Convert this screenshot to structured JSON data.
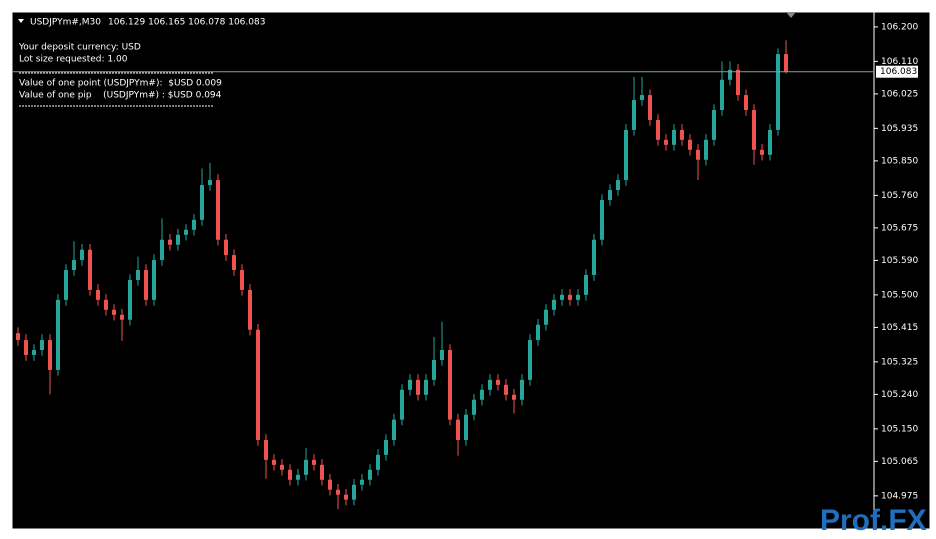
{
  "chart_data": {
    "type": "candlestick",
    "symbol": "USDJPYm#,M30",
    "header_prices": "106.129 106.165 106.078 106.083",
    "info_lines": [
      "Your deposit currency: USD",
      "Lot size requested: 1.00",
      "Value of one point (USDJPYm#):  $USD 0.009",
      "Value of one pip    (USDJPYm#) : $USD 0.094"
    ],
    "watermark": "Prof.FX",
    "last_price": 106.083,
    "up_color": "#26a69a",
    "down_color": "#ef5350",
    "ylim": [
      104.891,
      106.239
    ],
    "yticks": [
      {
        "value": 106.2,
        "label": "106.200"
      },
      {
        "value": 106.11,
        "label": "106.110"
      },
      {
        "value": 106.025,
        "label": "106.025"
      },
      {
        "value": 105.935,
        "label": "105.935"
      },
      {
        "value": 105.85,
        "label": "105.850"
      },
      {
        "value": 105.76,
        "label": "105.760"
      },
      {
        "value": 105.675,
        "label": "105.675"
      },
      {
        "value": 105.59,
        "label": "105.590"
      },
      {
        "value": 105.5,
        "label": "105.500"
      },
      {
        "value": 105.415,
        "label": "105.415"
      },
      {
        "value": 105.325,
        "label": "105.325"
      },
      {
        "value": 105.24,
        "label": "105.240"
      },
      {
        "value": 105.15,
        "label": "105.150"
      },
      {
        "value": 105.065,
        "label": "105.065"
      },
      {
        "value": 104.975,
        "label": "104.975"
      }
    ],
    "open": [
      105.4,
      105.382,
      105.343,
      105.356,
      105.382,
      105.304,
      105.487,
      105.565,
      105.591,
      105.618,
      105.513,
      105.487,
      105.461,
      105.448,
      105.435,
      105.539,
      105.565,
      105.487,
      105.591,
      105.644,
      105.631,
      105.657,
      105.67,
      105.696,
      105.787,
      105.8,
      105.644,
      105.604,
      105.565,
      105.513,
      105.409,
      105.121,
      105.069,
      105.056,
      105.043,
      105.017,
      105.03,
      105.069,
      105.056,
      105.017,
      104.991,
      104.978,
      104.965,
      105.004,
      105.017,
      105.043,
      105.082,
      105.121,
      105.174,
      105.252,
      105.278,
      105.239,
      105.278,
      105.33,
      105.356,
      105.174,
      105.121,
      105.187,
      105.226,
      105.252,
      105.278,
      105.265,
      105.239,
      105.226,
      105.278,
      105.382,
      105.422,
      105.461,
      105.487,
      105.5,
      105.487,
      105.5,
      105.552,
      105.644,
      105.748,
      105.774,
      105.8,
      105.931,
      106.009,
      106.022,
      105.957,
      105.905,
      105.892,
      105.931,
      105.905,
      105.879,
      105.853,
      105.905,
      105.983,
      106.062,
      106.088,
      106.022,
      105.983,
      105.879,
      105.866,
      105.931,
      106.129
    ],
    "high": [
      105.415,
      105.397,
      105.371,
      105.397,
      105.397,
      105.502,
      105.58,
      105.64,
      105.633,
      105.633,
      105.528,
      105.502,
      105.476,
      105.463,
      105.554,
      105.6,
      105.58,
      105.606,
      105.7,
      105.659,
      105.672,
      105.685,
      105.711,
      105.83,
      105.845,
      105.815,
      105.659,
      105.619,
      105.58,
      105.528,
      105.424,
      105.136,
      105.084,
      105.071,
      105.058,
      105.045,
      105.1,
      105.084,
      105.071,
      105.032,
      105.006,
      104.993,
      105.019,
      105.032,
      105.058,
      105.097,
      105.136,
      105.189,
      105.267,
      105.293,
      105.293,
      105.293,
      105.39,
      105.43,
      105.371,
      105.189,
      105.202,
      105.241,
      105.267,
      105.293,
      105.293,
      105.28,
      105.254,
      105.293,
      105.397,
      105.437,
      105.476,
      105.502,
      105.515,
      105.515,
      105.515,
      105.567,
      105.659,
      105.763,
      105.789,
      105.815,
      105.946,
      106.07,
      106.07,
      106.037,
      105.972,
      105.92,
      105.946,
      105.946,
      105.92,
      105.894,
      105.92,
      105.998,
      106.11,
      106.11,
      106.103,
      106.037,
      105.998,
      105.894,
      105.946,
      106.144,
      106.165
    ],
    "low": [
      105.367,
      105.328,
      105.328,
      105.341,
      105.24,
      105.289,
      105.472,
      105.55,
      105.576,
      105.498,
      105.472,
      105.446,
      105.433,
      105.38,
      105.42,
      105.524,
      105.472,
      105.472,
      105.576,
      105.616,
      105.616,
      105.642,
      105.655,
      105.681,
      105.772,
      105.629,
      105.589,
      105.55,
      105.498,
      105.394,
      105.106,
      105.02,
      105.041,
      105.028,
      105.002,
      105.002,
      105.015,
      105.041,
      105.002,
      104.976,
      104.94,
      104.95,
      104.95,
      104.989,
      105.002,
      105.028,
      105.067,
      105.106,
      105.159,
      105.237,
      105.224,
      105.224,
      105.263,
      105.315,
      105.159,
      105.08,
      105.106,
      105.172,
      105.211,
      105.237,
      105.25,
      105.224,
      105.19,
      105.211,
      105.263,
      105.367,
      105.407,
      105.446,
      105.472,
      105.472,
      105.472,
      105.485,
      105.537,
      105.629,
      105.733,
      105.759,
      105.785,
      105.916,
      105.994,
      105.942,
      105.89,
      105.877,
      105.877,
      105.89,
      105.864,
      105.8,
      105.838,
      105.89,
      105.968,
      106.047,
      106.007,
      105.968,
      105.84,
      105.851,
      105.851,
      105.916,
      106.078
    ],
    "close": [
      105.382,
      105.343,
      105.356,
      105.382,
      105.304,
      105.487,
      105.565,
      105.591,
      105.618,
      105.513,
      105.487,
      105.461,
      105.448,
      105.435,
      105.539,
      105.565,
      105.487,
      105.591,
      105.644,
      105.631,
      105.657,
      105.67,
      105.696,
      105.787,
      105.8,
      105.644,
      105.604,
      105.565,
      105.513,
      105.409,
      105.121,
      105.069,
      105.056,
      105.043,
      105.017,
      105.03,
      105.069,
      105.056,
      105.017,
      104.991,
      104.978,
      104.965,
      105.004,
      105.017,
      105.043,
      105.082,
      105.121,
      105.174,
      105.252,
      105.278,
      105.239,
      105.278,
      105.33,
      105.356,
      105.174,
      105.121,
      105.187,
      105.226,
      105.252,
      105.278,
      105.265,
      105.239,
      105.226,
      105.278,
      105.382,
      105.422,
      105.461,
      105.487,
      105.5,
      105.487,
      105.5,
      105.552,
      105.644,
      105.748,
      105.774,
      105.8,
      105.931,
      106.009,
      106.022,
      105.957,
      105.905,
      105.892,
      105.931,
      105.905,
      105.879,
      105.853,
      105.905,
      105.983,
      106.062,
      106.088,
      106.022,
      105.983,
      105.879,
      105.866,
      105.931,
      106.129,
      106.083
    ]
  }
}
